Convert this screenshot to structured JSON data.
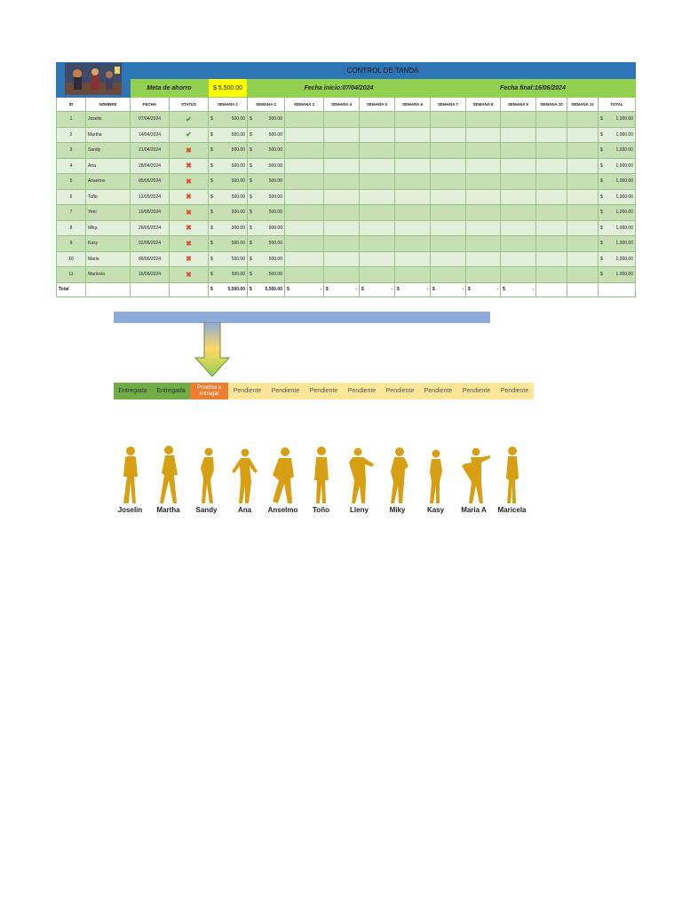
{
  "sheet": {
    "title": "CONTROL DE TANDA",
    "goal_label": "Meta de ahorro",
    "goal_value": "$ 5,500.00",
    "start_date": "Fecha inicio:07/04/2024",
    "end_date": "Fecha final:16/06/2024",
    "headers": [
      "ID",
      "NOMBRE",
      "FECHA",
      "STATUS",
      "SEMANA 1",
      "SEMANA 2",
      "SEMANA 3",
      "SEMANA 4",
      "SEMANA 5",
      "SEMANA 6",
      "SEMANA 7",
      "SEMANA 8",
      "SEMANA 9",
      "SEMANA 10",
      "SEMANA 11",
      "TOTAL"
    ],
    "currency": "$",
    "rows": [
      {
        "id": "1",
        "name": "Joselin",
        "date": "07/04/2024",
        "status": "paid",
        "w1": "500.00",
        "w2": "500.00",
        "total": "1,000.00"
      },
      {
        "id": "2",
        "name": "Martha",
        "date": "14/04/2024",
        "status": "paid",
        "w1": "500.00",
        "w2": "500.00",
        "total": "1,000.00"
      },
      {
        "id": "3",
        "name": "Sandy",
        "date": "21/04/2024",
        "status": "pending",
        "w1": "500.00",
        "w2": "500.00",
        "total": "1,000.00"
      },
      {
        "id": "4",
        "name": "Ana",
        "date": "28/04/2024",
        "status": "pending",
        "w1": "500.00",
        "w2": "500.00",
        "total": "1,000.00"
      },
      {
        "id": "5",
        "name": "Anselmo",
        "date": "05/05/2024",
        "status": "pending",
        "w1": "500.00",
        "w2": "500.00",
        "total": "1,000.00"
      },
      {
        "id": "6",
        "name": "Toño",
        "date": "12/05/2024",
        "status": "pending",
        "w1": "500.00",
        "w2": "500.00",
        "total": "1,000.00"
      },
      {
        "id": "7",
        "name": "Yeni",
        "date": "19/05/2024",
        "status": "pending",
        "w1": "500.00",
        "w2": "500.00",
        "total": "1,000.00"
      },
      {
        "id": "8",
        "name": "Miky",
        "date": "26/05/2024",
        "status": "pending",
        "w1": "500.00",
        "w2": "500.00",
        "total": "1,000.00"
      },
      {
        "id": "9",
        "name": "Kasy",
        "date": "02/06/2024",
        "status": "pending",
        "w1": "500.00",
        "w2": "500.00",
        "total": "1,000.00"
      },
      {
        "id": "10",
        "name": "Maria",
        "date": "09/06/2024",
        "status": "pending",
        "w1": "500.00",
        "w2": "500.00",
        "total": "1,000.00"
      },
      {
        "id": "11",
        "name": "Maricela",
        "date": "16/06/2024",
        "status": "pending",
        "w1": "500.00",
        "w2": "500.00",
        "total": "1,000.00"
      }
    ],
    "total_label": "Total",
    "total_w1": "5,500.00",
    "total_w2": "5,500.00",
    "total_empty": "-",
    "status_icons": {
      "paid": "check-icon",
      "pending": "cross-icon"
    }
  },
  "states": [
    {
      "label": "Entregada",
      "kind": "ent"
    },
    {
      "label": "Entregada",
      "kind": "ent"
    },
    {
      "label": "Proxima a entregar",
      "kind": "next"
    },
    {
      "label": "Pendiente",
      "kind": "pend"
    },
    {
      "label": "Pendiente",
      "kind": "pend"
    },
    {
      "label": "Pendiente",
      "kind": "pend"
    },
    {
      "label": "Pendiente",
      "kind": "pend"
    },
    {
      "label": "Pendiente",
      "kind": "pend"
    },
    {
      "label": "Pendiente",
      "kind": "pend"
    },
    {
      "label": "Pendiente",
      "kind": "pend"
    },
    {
      "label": "Pendiente",
      "kind": "pend"
    }
  ],
  "people": [
    "Joselin",
    "Martha",
    "Sandy",
    "Ana",
    "Anselmo",
    "Toño",
    "Lleny",
    "Miky",
    "Kasy",
    "Maria A",
    "Maricela"
  ],
  "colors": {
    "title_bar": "#2e75b6",
    "meta_bar": "#92d050",
    "goal_highlight": "#ffff00",
    "row_dark": "#c6e0b4",
    "row_light": "#e2efda",
    "progress_bar": "#8eaadb",
    "delivered": "#70ad47",
    "next": "#ed7d31",
    "pending": "#ffe699",
    "silhouette": "#d79f13"
  }
}
